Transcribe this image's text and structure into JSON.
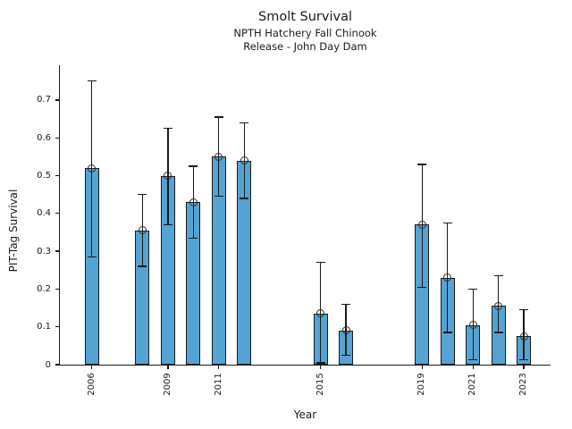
{
  "figure": {
    "title": "Smolt Survival",
    "subtitle_line1": "NPTH Hatchery Fall Chinook",
    "subtitle_line2": "Release - John Day Dam"
  },
  "chart_data": {
    "type": "bar",
    "title": "Smolt Survival",
    "subtitle": [
      "NPTH Hatchery Fall Chinook",
      "Release - John Day Dam"
    ],
    "xlabel": "Year",
    "ylabel": "PIT-Tag Survival",
    "grid": false,
    "legend": false,
    "bar_color": "#54A3D3",
    "bar_edge_color": "#1a1a1a",
    "error_bar_color": "#1a1a1a",
    "marker": "open-circle",
    "xlim": [
      2004.75,
      2024.05
    ],
    "ylim": [
      0,
      0.792
    ],
    "x_ticks": [
      2006,
      2009,
      2011,
      2015,
      2019,
      2021,
      2023
    ],
    "y_ticks": [
      0,
      0.1,
      0.2,
      0.3,
      0.4,
      0.5,
      0.6,
      0.7
    ],
    "y_tick_labels": [
      "0",
      "0.1",
      "0.2",
      "0.3",
      "0.4",
      "0.5",
      "0.6",
      "0.7"
    ],
    "series": [
      {
        "name": "PIT-Tag Survival",
        "x": [
          2006,
          2008,
          2009,
          2010,
          2011,
          2012,
          2015,
          2016,
          2019,
          2020,
          2021,
          2022,
          2023
        ],
        "values": [
          0.52,
          0.355,
          0.5,
          0.43,
          0.55,
          0.54,
          0.135,
          0.09,
          0.37,
          0.23,
          0.105,
          0.155,
          0.075
        ],
        "ci_low": [
          0.285,
          0.26,
          0.37,
          0.335,
          0.445,
          0.44,
          0.005,
          0.025,
          0.205,
          0.085,
          0.013,
          0.085,
          0.013
        ],
        "ci_high": [
          0.75,
          0.45,
          0.625,
          0.525,
          0.655,
          0.64,
          0.27,
          0.16,
          0.53,
          0.375,
          0.2,
          0.235,
          0.145
        ]
      }
    ]
  }
}
